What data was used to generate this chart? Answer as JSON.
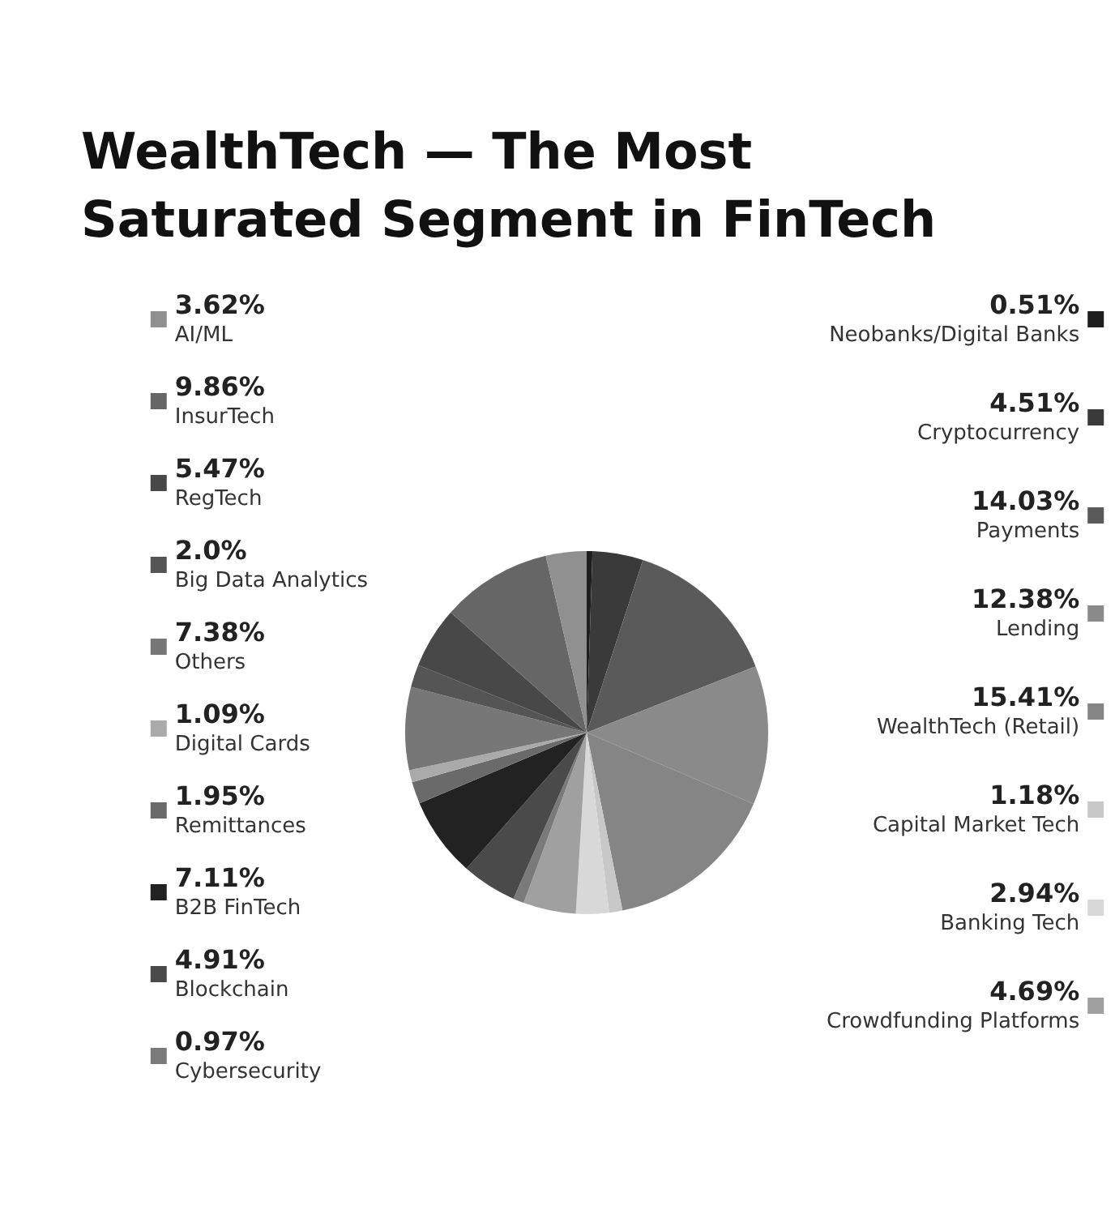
{
  "chart_data": {
    "type": "pie",
    "title": "WealthTech — The Most Saturated Segment in FinTech",
    "categories": [
      "Neobanks/Digital Banks",
      "Cryptocurrency",
      "Payments",
      "Lending",
      "WealthTech (Retail)",
      "Capital Market Tech",
      "Banking Tech",
      "Crowdfunding Platforms",
      "Cybersecurity",
      "Blockchain",
      "B2B FinTech",
      "Remittances",
      "Digital Cards",
      "Others",
      "Big Data Analytics",
      "RegTech",
      "InsurTech",
      "AI/ML"
    ],
    "values": [
      0.51,
      4.51,
      14.03,
      12.38,
      15.41,
      1.18,
      2.94,
      4.69,
      0.97,
      4.91,
      7.11,
      1.95,
      1.09,
      7.38,
      2.0,
      5.47,
      9.86,
      3.62
    ],
    "value_labels": [
      "0.51%",
      "4.51%",
      "14.03%",
      "12.38%",
      "15.41%",
      "1.18%",
      "2.94%",
      "4.69%",
      "0.97%",
      "4.91%",
      "7.11%",
      "1.95%",
      "1.09%",
      "7.38%",
      "2.0%",
      "5.47%",
      "9.86%",
      "3.62%"
    ],
    "colors": [
      "#1e1e1e",
      "#3a3a3a",
      "#5a5a5a",
      "#8a8a8a",
      "#858585",
      "#c8c8c8",
      "#d8d8d8",
      "#a0a0a0",
      "#7a7a7a",
      "#4a4a4a",
      "#222222",
      "#6a6a6a",
      "#aaaaaa",
      "#777777",
      "#555555",
      "#484848",
      "#666666",
      "#909090"
    ],
    "legend": "top right"
  }
}
